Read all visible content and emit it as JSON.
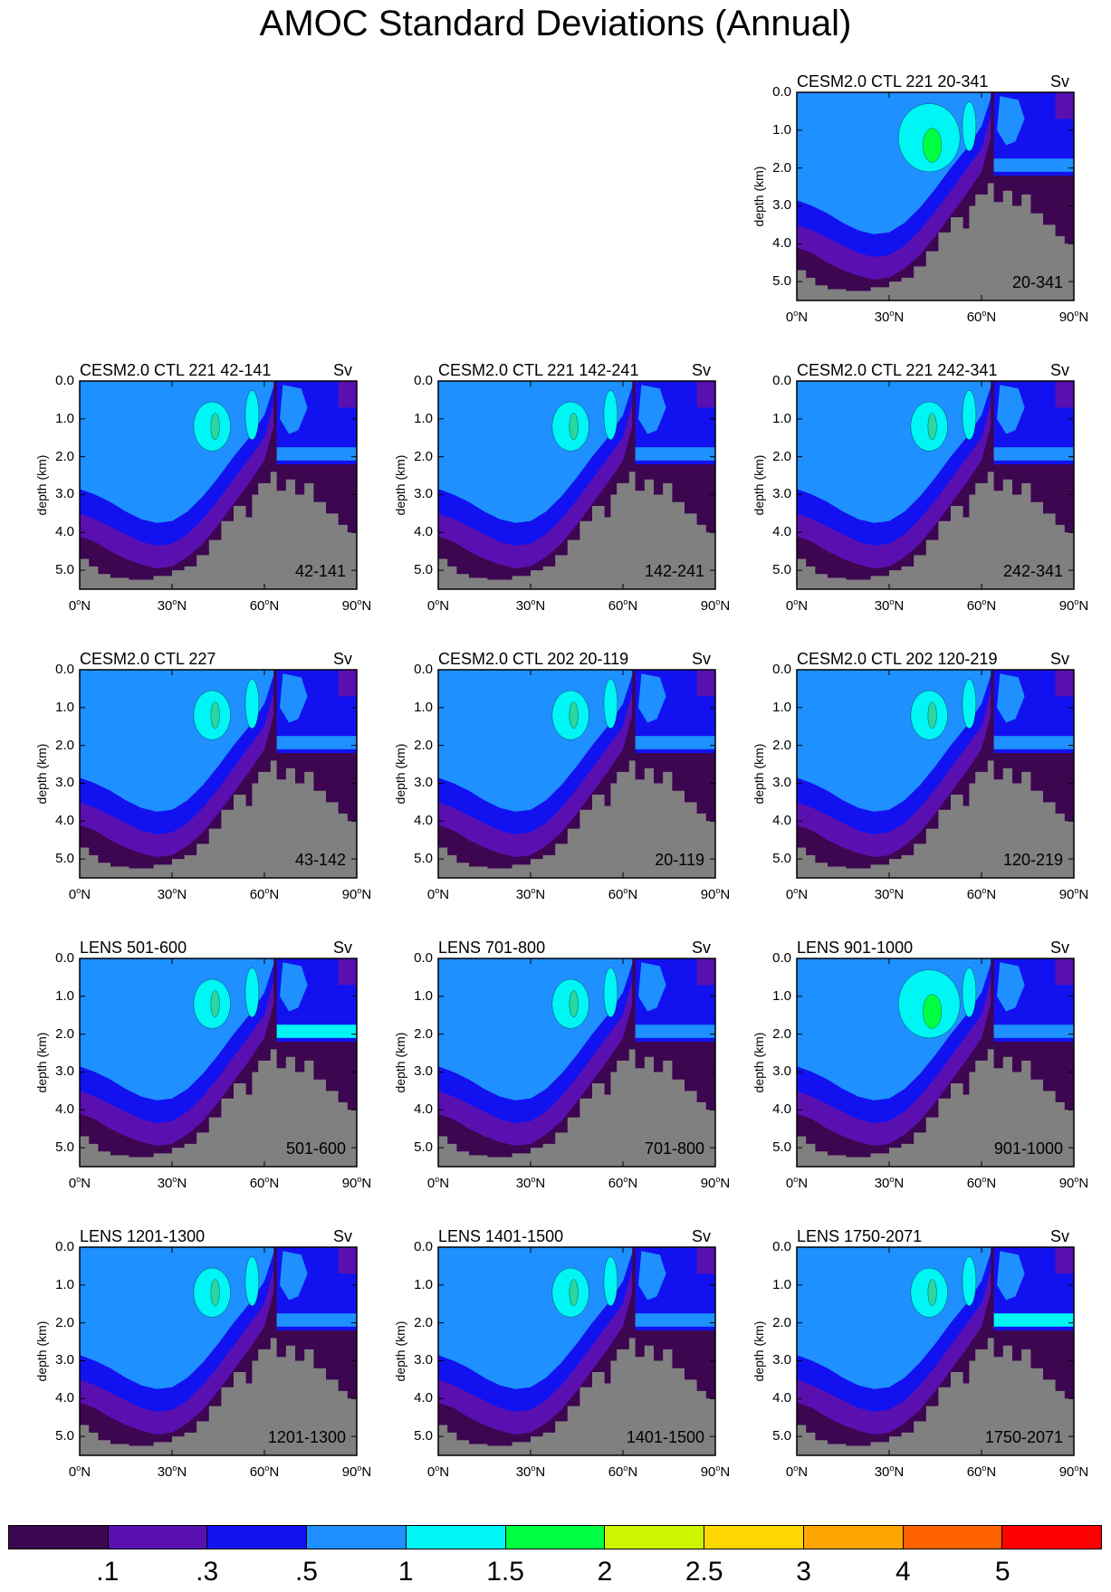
{
  "title": "AMOC Standard Deviations (Annual)",
  "unit": "Sv",
  "y_axis_label": "depth (km)",
  "y_ticks": [
    "0.0",
    "1.0",
    "2.0",
    "3.0",
    "4.0",
    "5.0"
  ],
  "x_ticks": [
    {
      "value": 0,
      "label": "0",
      "suffix": "N"
    },
    {
      "value": 30,
      "label": "30",
      "suffix": "N"
    },
    {
      "value": 60,
      "label": "60",
      "suffix": "N"
    },
    {
      "value": 90,
      "label": "90",
      "suffix": "N"
    }
  ],
  "colorbar": {
    "colors": [
      "#3d0650",
      "#5a10b0",
      "#1212f0",
      "#1e90ff",
      "#00f5f5",
      "#00ff41",
      "#ccf500",
      "#ffd700",
      "#ffa500",
      "#ff6100",
      "#ff0000"
    ],
    "labels": [
      ".1",
      ".3",
      ".5",
      "1",
      "1.5",
      "2",
      "2.5",
      "3",
      "4",
      "5"
    ]
  },
  "chart_data": [
    {
      "type": "heatmap",
      "title": "CESM2.0 CTL 221 20-341",
      "period": "20-341",
      "xlim": [
        0,
        90
      ],
      "ylim": [
        5.5,
        0
      ],
      "xlabel": "",
      "ylabel": "depth (km)"
    },
    {
      "type": "heatmap",
      "title": "CESM2.0 CTL 221 42-141",
      "period": "42-141",
      "xlim": [
        0,
        90
      ],
      "ylim": [
        5.5,
        0
      ],
      "xlabel": "",
      "ylabel": "depth (km)"
    },
    {
      "type": "heatmap",
      "title": "CESM2.0 CTL 221 142-241",
      "period": "142-241",
      "xlim": [
        0,
        90
      ],
      "ylim": [
        5.5,
        0
      ],
      "xlabel": "",
      "ylabel": "depth (km)"
    },
    {
      "type": "heatmap",
      "title": "CESM2.0 CTL 221 242-341",
      "period": "242-341",
      "xlim": [
        0,
        90
      ],
      "ylim": [
        5.5,
        0
      ],
      "xlabel": "",
      "ylabel": "depth (km)"
    },
    {
      "type": "heatmap",
      "title": "CESM2.0 CTL 227",
      "period": "43-142",
      "xlim": [
        0,
        90
      ],
      "ylim": [
        5.5,
        0
      ],
      "xlabel": "",
      "ylabel": "depth (km)"
    },
    {
      "type": "heatmap",
      "title": "CESM2.0 CTL 202 20-119",
      "period": "20-119",
      "xlim": [
        0,
        90
      ],
      "ylim": [
        5.5,
        0
      ],
      "xlabel": "",
      "ylabel": "depth (km)"
    },
    {
      "type": "heatmap",
      "title": "CESM2.0 CTL 202 120-219",
      "period": "120-219",
      "xlim": [
        0,
        90
      ],
      "ylim": [
        5.5,
        0
      ],
      "xlabel": "",
      "ylabel": "depth (km)"
    },
    {
      "type": "heatmap",
      "title": "LENS 501-600",
      "period": "501-600",
      "xlim": [
        0,
        90
      ],
      "ylim": [
        5.5,
        0
      ],
      "xlabel": "",
      "ylabel": "depth (km)"
    },
    {
      "type": "heatmap",
      "title": "LENS 701-800",
      "period": "701-800",
      "xlim": [
        0,
        90
      ],
      "ylim": [
        5.5,
        0
      ],
      "xlabel": "",
      "ylabel": "depth (km)"
    },
    {
      "type": "heatmap",
      "title": "LENS 901-1000",
      "period": "901-1000",
      "xlim": [
        0,
        90
      ],
      "ylim": [
        5.5,
        0
      ],
      "xlabel": "",
      "ylabel": "depth (km)"
    },
    {
      "type": "heatmap",
      "title": "LENS 1201-1300",
      "period": "1201-1300",
      "xlim": [
        0,
        90
      ],
      "ylim": [
        5.5,
        0
      ],
      "xlabel": "",
      "ylabel": "depth (km)"
    },
    {
      "type": "heatmap",
      "title": "LENS 1401-1500",
      "period": "1401-1500",
      "xlim": [
        0,
        90
      ],
      "ylim": [
        5.5,
        0
      ],
      "xlabel": "",
      "ylabel": "depth (km)"
    },
    {
      "type": "heatmap",
      "title": "LENS 1750-2071",
      "period": "1750-2071",
      "xlim": [
        0,
        90
      ],
      "ylim": [
        5.5,
        0
      ],
      "xlabel": "",
      "ylabel": "depth (km)"
    }
  ]
}
